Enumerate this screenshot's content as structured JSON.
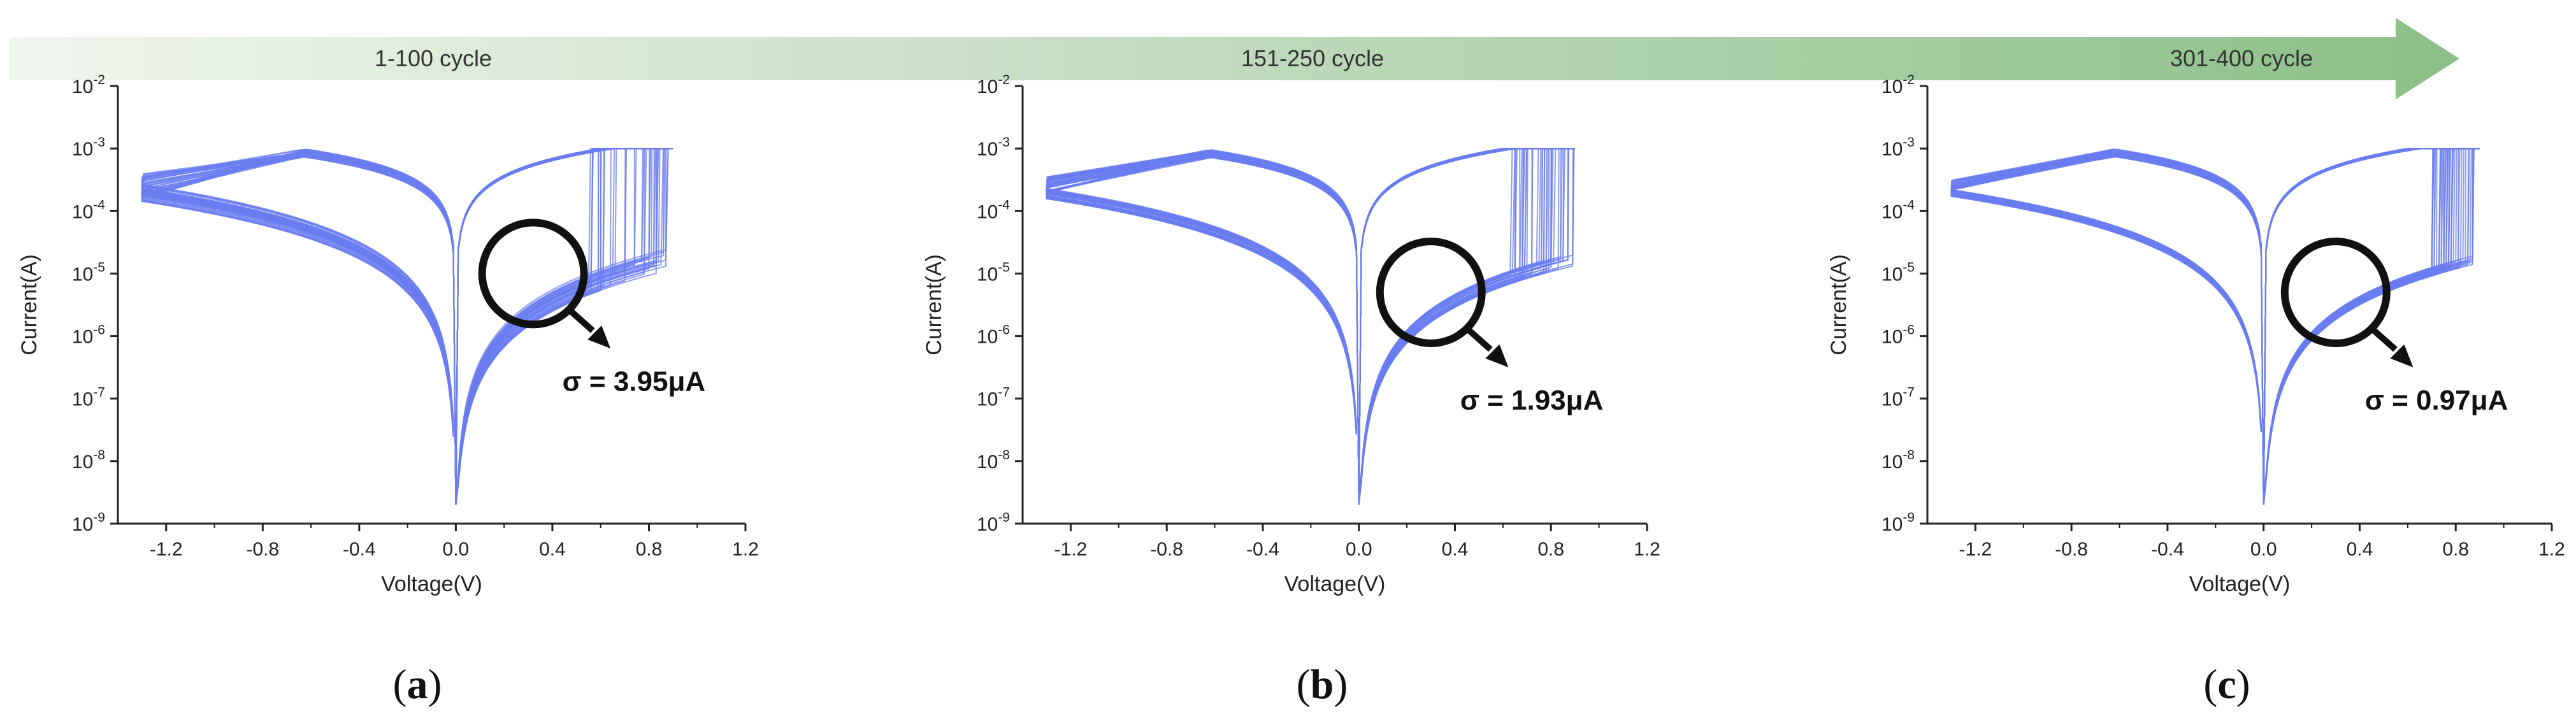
{
  "progress_arrow": {
    "labels": [
      "1-100 cycle",
      "151-250 cycle",
      "301-400 cycle"
    ],
    "color_start": "#f1f6ee",
    "color_end": "#8cbf88"
  },
  "colors": {
    "curve": "#6a7cf0",
    "axis": "#222222",
    "marker": "#111111"
  },
  "chart_data": [
    {
      "type": "line",
      "panel_label": "(a)",
      "paren_open": "(",
      "letter": "a",
      "paren_close": ")",
      "title": "1-100 cycle",
      "xlabel": "Voltage(V)",
      "ylabel": "Current(A)",
      "xlim": [
        -1.4,
        1.2
      ],
      "ylim": [
        1e-09,
        0.01
      ],
      "yscale": "log",
      "x_ticks": [
        -1.2,
        -0.8,
        -0.4,
        0.0,
        0.4,
        0.8,
        1.2
      ],
      "x_tick_labels": [
        "-1.2",
        "-0.8",
        "-0.4",
        "0.0",
        "0.4",
        "0.8",
        "1.2"
      ],
      "y_tick_bases": [
        "10",
        "10",
        "10",
        "10",
        "10",
        "10",
        "10",
        "10"
      ],
      "y_tick_exps": [
        "-9",
        "-8",
        "-7",
        "-6",
        "-5",
        "-4",
        "-3",
        "-2"
      ],
      "compliance_current": 0.001,
      "sweep_range": [
        -1.3,
        0.9
      ],
      "set_voltage_range": [
        0.55,
        0.88
      ],
      "curve_count": 40,
      "annotation": {
        "text": "σ = 3.95μA",
        "x": 0.32,
        "y": 1e-05
      }
    },
    {
      "type": "line",
      "panel_label": "(b)",
      "paren_open": "(",
      "letter": "b",
      "paren_close": ")",
      "title": "151-250 cycle",
      "xlabel": "Voltage(V)",
      "ylabel": "Current(A)",
      "xlim": [
        -1.4,
        1.2
      ],
      "ylim": [
        1e-09,
        0.01
      ],
      "yscale": "log",
      "x_ticks": [
        -1.2,
        -0.8,
        -0.4,
        0.0,
        0.4,
        0.8,
        1.2
      ],
      "x_tick_labels": [
        "-1.2",
        "-0.8",
        "-0.4",
        "0.0",
        "0.4",
        "0.8",
        "1.2"
      ],
      "y_tick_bases": [
        "10",
        "10",
        "10",
        "10",
        "10",
        "10",
        "10",
        "10"
      ],
      "y_tick_exps": [
        "-9",
        "-8",
        "-7",
        "-6",
        "-5",
        "-4",
        "-3",
        "-2"
      ],
      "compliance_current": 0.001,
      "sweep_range": [
        -1.3,
        0.9
      ],
      "set_voltage_range": [
        0.62,
        0.9
      ],
      "curve_count": 40,
      "annotation": {
        "text": "σ = 1.93μA",
        "x": 0.3,
        "y": 5e-06
      }
    },
    {
      "type": "line",
      "panel_label": "(c)",
      "paren_open": "(",
      "letter": "c",
      "paren_close": ")",
      "title": "301-400 cycle",
      "xlabel": "Voltage(V)",
      "ylabel": "Current(A)",
      "xlim": [
        -1.4,
        1.2
      ],
      "ylim": [
        1e-09,
        0.01
      ],
      "yscale": "log",
      "x_ticks": [
        -1.2,
        -0.8,
        -0.4,
        0.0,
        0.4,
        0.8,
        1.2
      ],
      "x_tick_labels": [
        "-1.2",
        "-0.8",
        "-0.4",
        "0.0",
        "0.4",
        "0.8",
        "1.2"
      ],
      "y_tick_bases": [
        "10",
        "10",
        "10",
        "10",
        "10",
        "10",
        "10",
        "10"
      ],
      "y_tick_exps": [
        "-9",
        "-8",
        "-7",
        "-6",
        "-5",
        "-4",
        "-3",
        "-2"
      ],
      "compliance_current": 0.001,
      "sweep_range": [
        -1.3,
        0.9
      ],
      "set_voltage_range": [
        0.7,
        0.88
      ],
      "curve_count": 40,
      "annotation": {
        "text": "σ = 0.97μA",
        "x": 0.3,
        "y": 5e-06
      }
    }
  ]
}
